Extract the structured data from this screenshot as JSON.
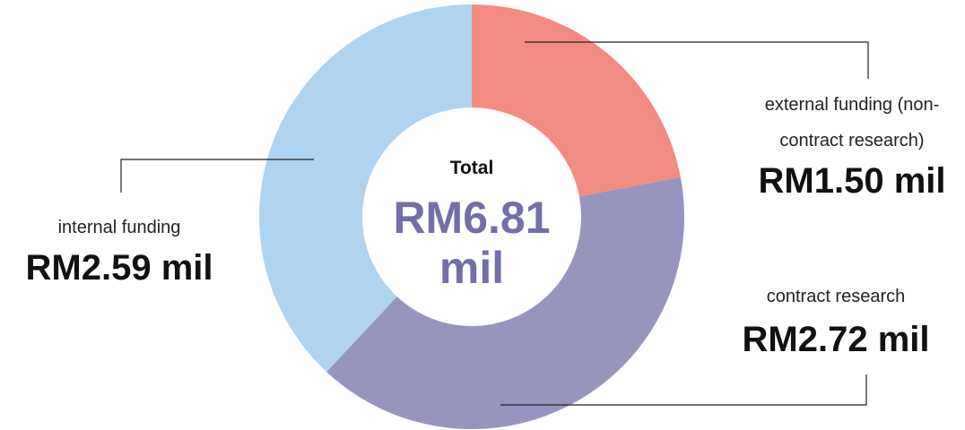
{
  "chart_data": {
    "type": "pie",
    "categories": [
      "external funding (non-contract research)",
      "contract research",
      "internal funding"
    ],
    "values": [
      1.5,
      2.72,
      2.59
    ],
    "value_labels": [
      "RM1.50 mil",
      "RM2.72 mil",
      "RM2.59 mil"
    ],
    "colors": [
      "#f28c80",
      "#9794c0",
      "#aed4f2"
    ],
    "center_title": "Total",
    "total": 6.81,
    "total_label": "RM6.81 mil"
  }
}
